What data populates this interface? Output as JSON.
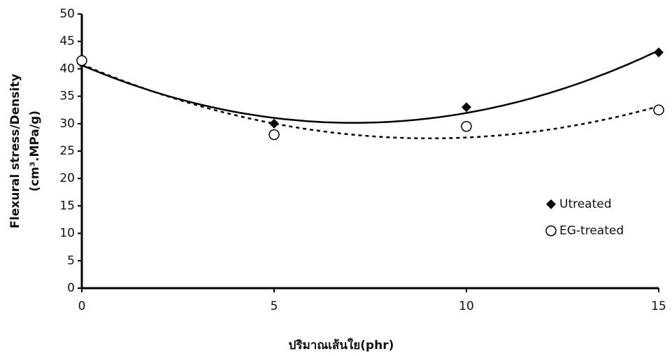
{
  "chart_data": {
    "type": "scatter",
    "xlabel": "ปริมาณเส้นใย(phr)",
    "ylabel": [
      "Flexural stress/Density",
      "(cm³.MPa/g)"
    ],
    "x": [
      0,
      5,
      10,
      15
    ],
    "series": [
      {
        "name": "Utreated",
        "color": "#000000",
        "marker": "diamond",
        "line_style": "solid",
        "values": [
          41,
          30,
          33,
          43
        ]
      },
      {
        "name": "EG-treated",
        "color": "#000000",
        "marker": "circle",
        "line_style": "dashed",
        "values": [
          41.5,
          28,
          29.5,
          32.5
        ]
      }
    ],
    "trendline": "polynomial",
    "xlim": [
      0,
      15
    ],
    "xticks": [
      0,
      5,
      10,
      15
    ],
    "ylim": [
      0,
      50
    ],
    "yticks": [
      0,
      5,
      10,
      15,
      20,
      25,
      30,
      35,
      40,
      45,
      50
    ],
    "legend": "right"
  }
}
